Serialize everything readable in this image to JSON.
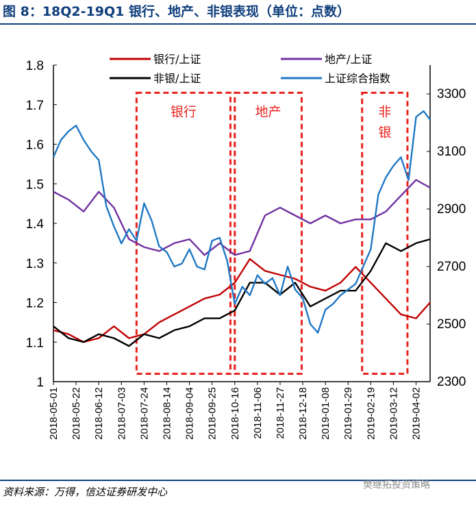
{
  "figure": {
    "title": "图 8：18Q2-19Q1 银行、地产、非银表现（单位：点数）",
    "source": "资料来源：万得，信达证券研发中心",
    "watermark": "樊继拓投资策略"
  },
  "chart_data": {
    "type": "line",
    "x_tick_labels": [
      "2018-05-01",
      "2018-05-22",
      "2018-06-12",
      "2018-07-03",
      "2018-07-24",
      "2018-08-14",
      "2018-09-04",
      "2018-09-25",
      "2018-10-16",
      "2018-11-06",
      "2018-11-27",
      "2018-12-18",
      "2019-01-08",
      "2019-01-29",
      "2019-02-19",
      "2019-03-12",
      "2019-04-02"
    ],
    "x_range": [
      "2018-05-01",
      "2019-04-15"
    ],
    "y_left": {
      "range": [
        1.0,
        1.8
      ],
      "ticks": [
        "1",
        "1.1",
        "1.2",
        "1.3",
        "1.4",
        "1.5",
        "1.6",
        "1.7",
        "1.8"
      ]
    },
    "y_right": {
      "range": [
        2300,
        3400
      ],
      "ticks": [
        "2300",
        "2500",
        "2700",
        "2900",
        "3100",
        "3300"
      ]
    },
    "legend": [
      "银行/上证",
      "地产/上证",
      "非银/上证",
      "上证综合指数"
    ],
    "colors": {
      "bank": "#c00000",
      "property": "#7030a0",
      "nonbank": "#000000",
      "index": "#1f77c4",
      "box": "#e8221c"
    },
    "series": [
      {
        "name": "银行/上证",
        "axis": "left",
        "x": [
          "2018-05-01",
          "2018-05-15",
          "2018-05-29",
          "2018-06-12",
          "2018-06-26",
          "2018-07-10",
          "2018-07-24",
          "2018-08-07",
          "2018-08-21",
          "2018-09-04",
          "2018-09-18",
          "2018-10-02",
          "2018-10-16",
          "2018-10-30",
          "2018-11-13",
          "2018-11-27",
          "2018-12-11",
          "2018-12-25",
          "2019-01-08",
          "2019-01-22",
          "2019-02-05",
          "2019-02-19",
          "2019-03-05",
          "2019-03-19",
          "2019-04-02",
          "2019-04-15"
        ],
        "values": [
          1.13,
          1.12,
          1.1,
          1.11,
          1.14,
          1.11,
          1.12,
          1.15,
          1.17,
          1.19,
          1.21,
          1.22,
          1.25,
          1.31,
          1.28,
          1.27,
          1.26,
          1.24,
          1.23,
          1.25,
          1.29,
          1.25,
          1.21,
          1.17,
          1.16,
          1.2
        ]
      },
      {
        "name": "地产/上证",
        "axis": "left",
        "x": [
          "2018-05-01",
          "2018-05-15",
          "2018-05-29",
          "2018-06-12",
          "2018-06-26",
          "2018-07-10",
          "2018-07-24",
          "2018-08-07",
          "2018-08-21",
          "2018-09-04",
          "2018-09-18",
          "2018-10-02",
          "2018-10-16",
          "2018-10-30",
          "2018-11-13",
          "2018-11-27",
          "2018-12-11",
          "2018-12-25",
          "2019-01-08",
          "2019-01-22",
          "2019-02-05",
          "2019-02-19",
          "2019-03-05",
          "2019-03-19",
          "2019-04-02",
          "2019-04-15"
        ],
        "values": [
          1.48,
          1.46,
          1.43,
          1.48,
          1.44,
          1.36,
          1.34,
          1.33,
          1.35,
          1.36,
          1.32,
          1.35,
          1.32,
          1.33,
          1.42,
          1.44,
          1.42,
          1.4,
          1.42,
          1.4,
          1.41,
          1.41,
          1.43,
          1.47,
          1.51,
          1.49
        ]
      },
      {
        "name": "非银/上证",
        "axis": "left",
        "x": [
          "2018-05-01",
          "2018-05-15",
          "2018-05-29",
          "2018-06-12",
          "2018-06-26",
          "2018-07-10",
          "2018-07-24",
          "2018-08-07",
          "2018-08-21",
          "2018-09-04",
          "2018-09-18",
          "2018-10-02",
          "2018-10-16",
          "2018-10-30",
          "2018-11-13",
          "2018-11-27",
          "2018-12-11",
          "2018-12-25",
          "2019-01-08",
          "2019-01-22",
          "2019-02-05",
          "2019-02-19",
          "2019-03-05",
          "2019-03-19",
          "2019-04-02",
          "2019-04-15"
        ],
        "values": [
          1.14,
          1.11,
          1.1,
          1.12,
          1.11,
          1.09,
          1.12,
          1.11,
          1.13,
          1.14,
          1.16,
          1.16,
          1.18,
          1.25,
          1.25,
          1.22,
          1.25,
          1.19,
          1.21,
          1.23,
          1.23,
          1.28,
          1.35,
          1.33,
          1.35,
          1.36
        ]
      },
      {
        "name": "上证综合指数",
        "axis": "right",
        "x": [
          "2018-05-01",
          "2018-05-08",
          "2018-05-15",
          "2018-05-22",
          "2018-05-29",
          "2018-06-05",
          "2018-06-12",
          "2018-06-19",
          "2018-06-26",
          "2018-07-03",
          "2018-07-10",
          "2018-07-17",
          "2018-07-24",
          "2018-07-31",
          "2018-08-07",
          "2018-08-14",
          "2018-08-21",
          "2018-08-28",
          "2018-09-04",
          "2018-09-11",
          "2018-09-18",
          "2018-09-25",
          "2018-10-02",
          "2018-10-09",
          "2018-10-16",
          "2018-10-23",
          "2018-10-30",
          "2018-11-06",
          "2018-11-13",
          "2018-11-20",
          "2018-11-27",
          "2018-12-04",
          "2018-12-11",
          "2018-12-18",
          "2018-12-25",
          "2019-01-01",
          "2019-01-08",
          "2019-01-15",
          "2019-01-22",
          "2019-01-29",
          "2019-02-05",
          "2019-02-12",
          "2019-02-19",
          "2019-02-26",
          "2019-03-05",
          "2019-03-12",
          "2019-03-19",
          "2019-03-26",
          "2019-04-02",
          "2019-04-09",
          "2019-04-15"
        ],
        "values": [
          3080,
          3140,
          3170,
          3190,
          3140,
          3100,
          3070,
          2910,
          2840,
          2780,
          2830,
          2790,
          2920,
          2860,
          2770,
          2750,
          2700,
          2710,
          2760,
          2700,
          2690,
          2790,
          2800,
          2720,
          2570,
          2630,
          2600,
          2670,
          2640,
          2660,
          2600,
          2700,
          2620,
          2590,
          2500,
          2470,
          2550,
          2570,
          2600,
          2620,
          2640,
          2700,
          2760,
          2950,
          3010,
          3050,
          3080,
          3000,
          3220,
          3240,
          3210
        ]
      }
    ],
    "highlight_boxes": [
      {
        "label": "银行",
        "x_start": "2018-07-17",
        "x_end": "2018-10-12",
        "y_top": 1.73,
        "y_bottom": 1.02
      },
      {
        "label": "地产",
        "x_start": "2018-10-16",
        "x_end": "2018-12-17",
        "y_top": 1.73,
        "y_bottom": 1.02
      },
      {
        "label": "非\n银",
        "x_start": "2019-02-11",
        "x_end": "2019-03-25",
        "y_top": 1.73,
        "y_bottom": 1.02
      }
    ]
  }
}
